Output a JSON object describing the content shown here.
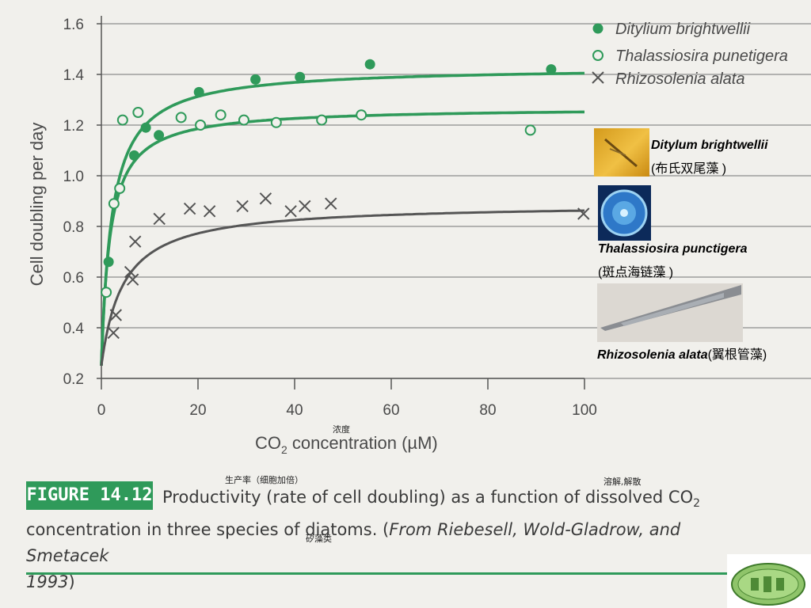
{
  "chart_data": {
    "type": "scatter",
    "xlabel": "CO2 concentration (µM)",
    "xlabel_main": "CO",
    "xlabel_sub": "2",
    "xlabel_rest": " concentration (µM)",
    "ylabel": "Cell doubling per day",
    "xlim": [
      0,
      100
    ],
    "ylim": [
      0.2,
      1.6
    ],
    "xticks": [
      "0",
      "20",
      "40",
      "60",
      "80",
      "100"
    ],
    "yticks": [
      "0.2",
      "0.4",
      "0.6",
      "0.8",
      "1.0",
      "1.2",
      "1.4",
      "1.6"
    ],
    "grid": "horizontal",
    "legend_position": "top-right",
    "series": [
      {
        "name": "Ditylium brightwellii",
        "marker": "filled-circle",
        "color": "#2f9a5a",
        "points": [
          [
            1.5,
            0.66
          ],
          [
            6.8,
            1.08
          ],
          [
            9.2,
            1.19
          ],
          [
            11.9,
            1.16
          ],
          [
            20.2,
            1.33
          ],
          [
            31.9,
            1.38
          ],
          [
            41.1,
            1.39
          ],
          [
            55.6,
            1.44
          ],
          [
            93.1,
            1.42
          ]
        ],
        "fit": {
          "max": 1.43,
          "min": 0.25,
          "k": 2.2
        }
      },
      {
        "name": "Thalassiosira punetigera",
        "marker": "open-circle",
        "color": "#2f9a5a",
        "points": [
          [
            1.0,
            0.54
          ],
          [
            2.6,
            0.89
          ],
          [
            3.8,
            0.95
          ],
          [
            4.4,
            1.22
          ],
          [
            7.6,
            1.25
          ],
          [
            16.5,
            1.23
          ],
          [
            20.5,
            1.2
          ],
          [
            24.7,
            1.24
          ],
          [
            29.5,
            1.22
          ],
          [
            36.2,
            1.21
          ],
          [
            45.6,
            1.22
          ],
          [
            53.8,
            1.24
          ],
          [
            88.8,
            1.18
          ]
        ],
        "fit": {
          "max": 1.27,
          "min": 0.25,
          "k": 1.8
        }
      },
      {
        "name": "Rhizosolenia alata",
        "marker": "x",
        "color": "#555555",
        "points": [
          [
            2.5,
            0.38
          ],
          [
            3.0,
            0.45
          ],
          [
            6.0,
            0.62
          ],
          [
            6.5,
            0.59
          ],
          [
            7.0,
            0.74
          ],
          [
            12.0,
            0.83
          ],
          [
            18.3,
            0.87
          ],
          [
            22.4,
            0.86
          ],
          [
            29.2,
            0.88
          ],
          [
            34.0,
            0.91
          ],
          [
            39.2,
            0.86
          ],
          [
            42.1,
            0.88
          ],
          [
            47.5,
            0.89
          ],
          [
            99.8,
            0.85
          ]
        ],
        "fit": {
          "max": 0.89,
          "min": 0.25,
          "k": 4.5
        }
      }
    ]
  },
  "annotations": {
    "nongdu": "浓度",
    "shengchanlv": "生产率（细胞加倍）",
    "rongjie": "溶解,解散",
    "guizaolei": "矽藻类"
  },
  "species_images": [
    {
      "name": "Ditylum brightwellii",
      "chinese": "(布氏双尾藻 )"
    },
    {
      "name": "Thalassiosira punctigera",
      "chinese": "(斑点海链藻 )"
    },
    {
      "name": "Rhizosolenia alata",
      "chinese": "(翼根管藻)"
    }
  ],
  "caption": {
    "label": "FIGURE 14.12",
    "line1_a": "Productivity (rate of cell doubling) as a function of dissolved CO",
    "line1_sub": "2",
    "line2_a": "concentration in three species of diatoms. (",
    "line2_italic": "From Riebesell, Wold-Gladrow, and Smetacek",
    "line3_italic": "1993",
    "line3_b": ")"
  },
  "colors": {
    "accent": "#2f9a5a",
    "grid": "#8c8c8c"
  }
}
